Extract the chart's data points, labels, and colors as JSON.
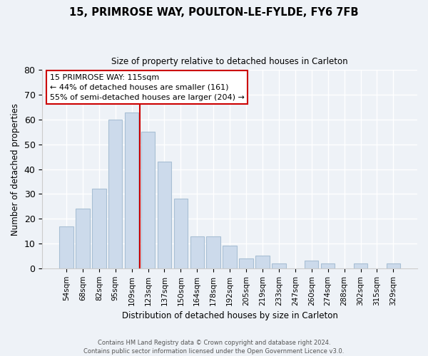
{
  "title_line1": "15, PRIMROSE WAY, POULTON-LE-FYLDE, FY6 7FB",
  "title_line2": "Size of property relative to detached houses in Carleton",
  "xlabel": "Distribution of detached houses by size in Carleton",
  "ylabel": "Number of detached properties",
  "categories": [
    "54sqm",
    "68sqm",
    "82sqm",
    "95sqm",
    "109sqm",
    "123sqm",
    "137sqm",
    "150sqm",
    "164sqm",
    "178sqm",
    "192sqm",
    "205sqm",
    "219sqm",
    "233sqm",
    "247sqm",
    "260sqm",
    "274sqm",
    "288sqm",
    "302sqm",
    "315sqm",
    "329sqm"
  ],
  "values": [
    17,
    24,
    32,
    60,
    63,
    55,
    43,
    28,
    13,
    13,
    9,
    4,
    5,
    2,
    0,
    3,
    2,
    0,
    2,
    0,
    2
  ],
  "bar_color": "#ccdaeb",
  "bar_edge_color": "#a8bfd4",
  "vline_x_index": 4.5,
  "vline_color": "#cc0000",
  "ylim": [
    0,
    80
  ],
  "yticks": [
    0,
    10,
    20,
    30,
    40,
    50,
    60,
    70,
    80
  ],
  "annotation_title": "15 PRIMROSE WAY: 115sqm",
  "annotation_line1": "← 44% of detached houses are smaller (161)",
  "annotation_line2": "55% of semi-detached houses are larger (204) →",
  "annotation_box_facecolor": "#ffffff",
  "annotation_box_edgecolor": "#cc0000",
  "footer_line1": "Contains HM Land Registry data © Crown copyright and database right 2024.",
  "footer_line2": "Contains public sector information licensed under the Open Government Licence v3.0.",
  "background_color": "#eef2f7",
  "grid_color": "#ffffff",
  "spine_color": "#cccccc"
}
